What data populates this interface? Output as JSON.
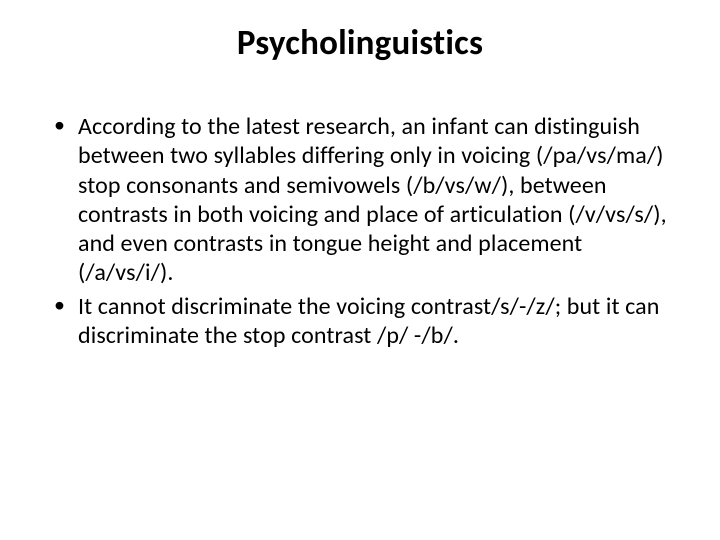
{
  "slide": {
    "title": "Psycholinguistics",
    "bullets": [
      "According to the latest research, an infant can distinguish between two syllables differing only in voicing (/pa/vs/ma/) stop consonants and semivowels (/b/vs/w/), between contrasts in both voicing and place of articulation (/v/vs/s/), and even contrasts in tongue height and placement (/a/vs/i/).",
      "It cannot discriminate the voicing contrast/s/-/z/; but it can discriminate the stop contrast /p/ -/b/."
    ],
    "styling": {
      "background_color": "#ffffff",
      "text_color": "#000000",
      "title_fontsize": 35,
      "title_weight": 700,
      "body_fontsize": 24,
      "line_height": 1.22,
      "font_family": "Calibri"
    }
  }
}
